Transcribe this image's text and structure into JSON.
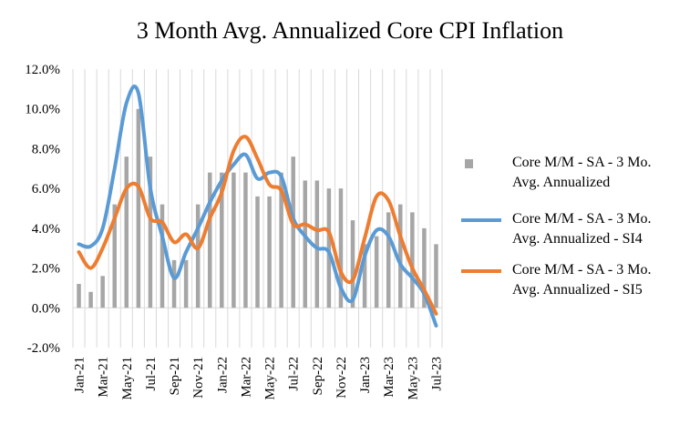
{
  "chart_data": {
    "type": "bar+line",
    "title": "3 Month Avg. Annualized  Core CPI Inflation",
    "xlabel": "",
    "ylabel": "",
    "ylim": [
      -2.0,
      12.0
    ],
    "yticks": [
      "-2.0%",
      "0.0%",
      "2.0%",
      "4.0%",
      "6.0%",
      "8.0%",
      "10.0%",
      "12.0%"
    ],
    "ytick_values": [
      -2,
      0,
      2,
      4,
      6,
      8,
      10,
      12
    ],
    "categories": [
      "Jan-21",
      "Feb-21",
      "Mar-21",
      "Apr-21",
      "May-21",
      "Jun-21",
      "Jul-21",
      "Aug-21",
      "Sep-21",
      "Oct-21",
      "Nov-21",
      "Dec-21",
      "Jan-22",
      "Feb-22",
      "Mar-22",
      "Apr-22",
      "May-22",
      "Jun-22",
      "Jul-22",
      "Aug-22",
      "Sep-22",
      "Oct-22",
      "Nov-22",
      "Dec-22",
      "Jan-23",
      "Feb-23",
      "Mar-23",
      "Apr-23",
      "May-23",
      "Jun-23",
      "Jul-23"
    ],
    "visible_xtick_labels": [
      "Jan-21",
      "Mar-21",
      "May-21",
      "Jul-21",
      "Sep-21",
      "Nov-21",
      "Jan-22",
      "Mar-22",
      "May-22",
      "Jul-22",
      "Sep-22",
      "Nov-22",
      "Jan-23",
      "Mar-23",
      "May-23",
      "Jul-23"
    ],
    "grid": "vertical",
    "legend_position": "right",
    "series": [
      {
        "name": "Core M/M - SA - 3 Mo. Avg. Annualized",
        "legend_lines": [
          "Core M/M - SA - 3 Mo.",
          "Avg. Annualized"
        ],
        "kind": "bar",
        "color": "#a6a6a6",
        "values": [
          1.2,
          0.8,
          1.6,
          5.2,
          7.6,
          10.0,
          7.6,
          5.2,
          2.4,
          2.4,
          5.2,
          6.8,
          6.8,
          6.8,
          6.8,
          5.6,
          5.6,
          6.8,
          7.6,
          6.4,
          6.4,
          6.0,
          6.0,
          4.4,
          3.2,
          3.6,
          4.8,
          5.2,
          4.8,
          4.0,
          3.2
        ]
      },
      {
        "name": "Core M/M - SA - 3 Mo. Avg. Annualized - SI4",
        "legend_lines": [
          "Core M/M - SA - 3 Mo.",
          "Avg. Annualized - SI4"
        ],
        "kind": "line",
        "color": "#5b9bd5",
        "values": [
          3.2,
          3.1,
          4.0,
          7.0,
          10.3,
          10.8,
          6.0,
          3.6,
          1.5,
          2.8,
          4.0,
          5.3,
          6.4,
          7.2,
          7.7,
          6.5,
          6.8,
          6.6,
          4.5,
          3.6,
          3.0,
          2.8,
          1.0,
          0.4,
          2.6,
          3.9,
          3.6,
          2.2,
          1.5,
          0.7,
          -0.9
        ]
      },
      {
        "name": "Core M/M - SA - 3 Mo. Avg. Annualized - SI5",
        "legend_lines": [
          "Core M/M - SA - 3 Mo.",
          "Avg. Annualized - SI5"
        ],
        "kind": "line",
        "color": "#ed7d31",
        "values": [
          2.8,
          2.0,
          3.0,
          4.5,
          6.0,
          6.1,
          4.5,
          4.3,
          3.3,
          3.7,
          3.0,
          4.5,
          5.8,
          7.9,
          8.6,
          7.5,
          6.2,
          5.9,
          4.2,
          4.2,
          3.9,
          3.8,
          1.8,
          1.4,
          3.5,
          5.6,
          5.4,
          3.6,
          2.0,
          0.9,
          -0.3
        ]
      }
    ]
  }
}
